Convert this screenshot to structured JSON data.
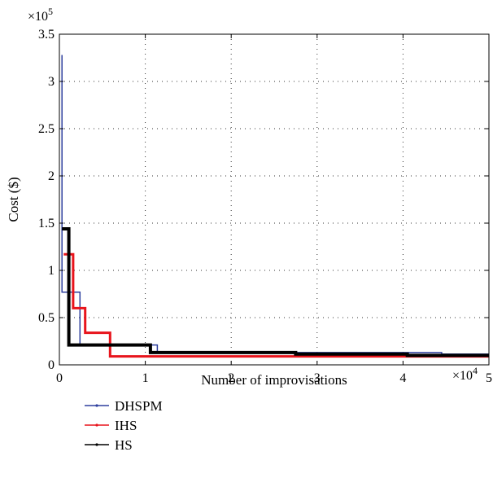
{
  "chart_data": {
    "type": "line",
    "xlabel": "Number of improvisations",
    "ylabel": "Cost ($)",
    "x_multiplier_label": "×10",
    "x_multiplier_exp": "4",
    "y_multiplier_label": "×10",
    "y_multiplier_exp": "5",
    "xlim": [
      0,
      5
    ],
    "ylim": [
      0,
      3.5
    ],
    "x_ticks": [
      0,
      1,
      2,
      3,
      4,
      5
    ],
    "x_tick_labels": [
      "0",
      "1",
      "2",
      "3",
      "4",
      "5"
    ],
    "y_ticks": [
      0,
      0.5,
      1,
      1.5,
      2,
      2.5,
      3,
      3.5
    ],
    "y_tick_labels": [
      "0",
      "0.5",
      "1",
      "1.5",
      "2",
      "2.5",
      "3",
      "3.5"
    ],
    "grid": true,
    "legend_position": "below-left",
    "series": [
      {
        "name": "DHSPM",
        "color": "#2e3f9e",
        "width": 1.5,
        "points": [
          [
            0.03,
            3.28
          ],
          [
            0.03,
            0.77
          ],
          [
            0.24,
            0.77
          ],
          [
            0.24,
            0.21
          ],
          [
            1.14,
            0.21
          ],
          [
            1.14,
            0.13
          ],
          [
            4.45,
            0.13
          ],
          [
            4.45,
            0.115
          ],
          [
            5.0,
            0.115
          ]
        ]
      },
      {
        "name": "IHS",
        "color": "#e8141c",
        "width": 3,
        "points": [
          [
            0.05,
            1.17
          ],
          [
            0.16,
            1.17
          ],
          [
            0.16,
            0.6
          ],
          [
            0.3,
            0.6
          ],
          [
            0.3,
            0.34
          ],
          [
            0.59,
            0.34
          ],
          [
            0.59,
            0.09
          ],
          [
            5.0,
            0.09
          ]
        ]
      },
      {
        "name": "HS",
        "color": "#000000",
        "width": 4,
        "points": [
          [
            0.03,
            1.44
          ],
          [
            0.11,
            1.44
          ],
          [
            0.11,
            0.21
          ],
          [
            1.06,
            0.21
          ],
          [
            1.06,
            0.13
          ],
          [
            2.75,
            0.13
          ],
          [
            2.75,
            0.115
          ],
          [
            4.05,
            0.115
          ],
          [
            4.05,
            0.1
          ],
          [
            5.0,
            0.1
          ]
        ]
      }
    ]
  }
}
